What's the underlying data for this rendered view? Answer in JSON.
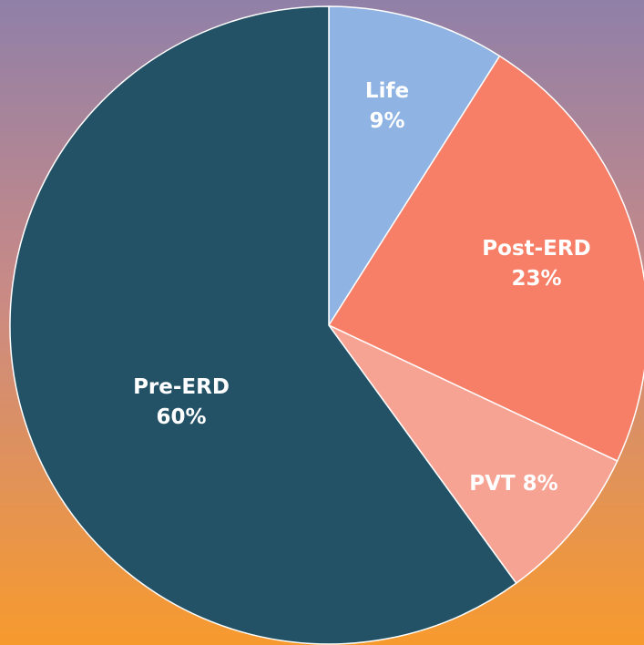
{
  "chart_data": {
    "type": "pie",
    "categories": [
      "Life",
      "Post-ERD",
      "PVT",
      "Pre-ERD"
    ],
    "values": [
      9,
      23,
      8,
      60
    ],
    "value_labels": [
      "9%",
      "23%",
      "8%",
      "60%"
    ],
    "colors": [
      "#8fb3e3",
      "#f77f68",
      "#f7a394",
      "#235266"
    ]
  }
}
